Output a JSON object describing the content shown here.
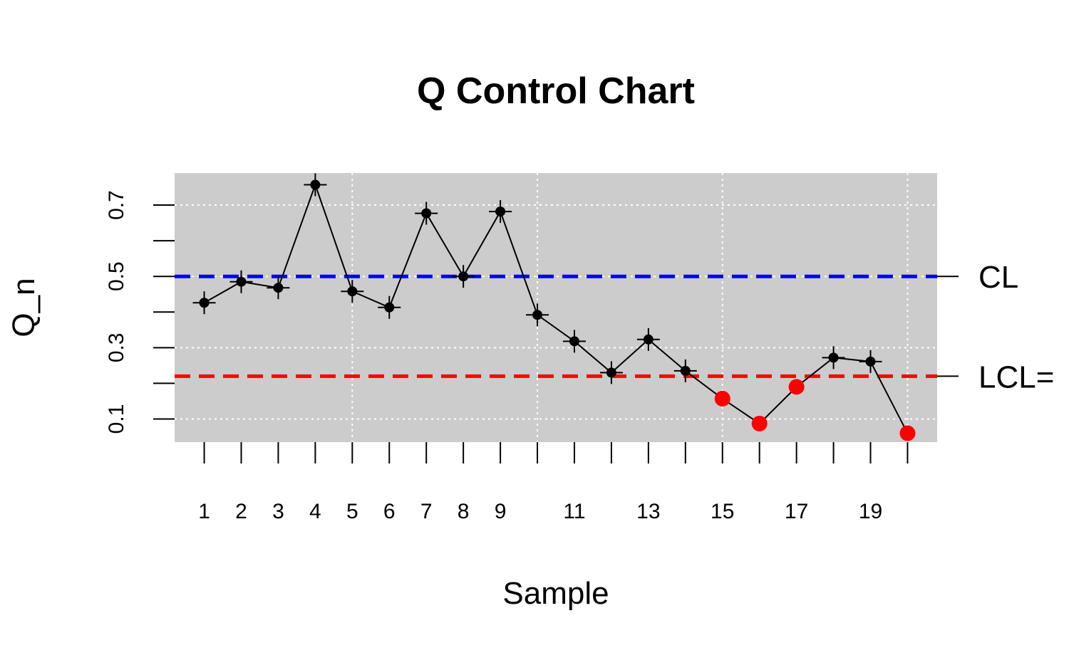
{
  "chart_data": {
    "type": "line",
    "title": "Q Control Chart",
    "xlabel": "Sample",
    "ylabel": "Q_n",
    "x": [
      1,
      2,
      3,
      4,
      5,
      6,
      7,
      8,
      9,
      10,
      11,
      12,
      13,
      14,
      15,
      16,
      17,
      18,
      19,
      20
    ],
    "values": [
      0.426,
      0.485,
      0.468,
      0.757,
      0.458,
      0.413,
      0.677,
      0.5,
      0.682,
      0.392,
      0.318,
      0.23,
      0.323,
      0.235,
      0.157,
      0.087,
      0.19,
      0.272,
      0.261,
      0.06
    ],
    "out_of_control": [
      15,
      16,
      17,
      20
    ],
    "xlim": [
      0.2,
      20.8
    ],
    "ylim": [
      0.035,
      0.79
    ],
    "x_ticks": [
      1,
      2,
      3,
      4,
      5,
      6,
      7,
      8,
      9,
      10,
      11,
      12,
      13,
      14,
      15,
      16,
      17,
      18,
      19,
      20
    ],
    "x_tick_labels": [
      "1",
      "2",
      "3",
      "4",
      "5",
      "6",
      "7",
      "8",
      "9",
      "",
      "11",
      "",
      "13",
      "",
      "15",
      "",
      "17",
      "",
      "19",
      ""
    ],
    "y_ticks": [
      0.1,
      0.2,
      0.3,
      0.4,
      0.5,
      0.6,
      0.7
    ],
    "y_tick_labels": [
      "0.1",
      "",
      "0.3",
      "",
      "0.5",
      "",
      "0.7"
    ],
    "reference_lines": [
      {
        "label": "CL",
        "value": 0.5,
        "color": "#0000ff"
      },
      {
        "label": "LCL=",
        "value": 0.22,
        "color": "#ff0000"
      }
    ],
    "grid": true,
    "colors": {
      "panel": "#cccccc",
      "grid": "#ffffff",
      "line": "#000000",
      "point": "#000000",
      "out_of_control": "#ff0000"
    }
  }
}
